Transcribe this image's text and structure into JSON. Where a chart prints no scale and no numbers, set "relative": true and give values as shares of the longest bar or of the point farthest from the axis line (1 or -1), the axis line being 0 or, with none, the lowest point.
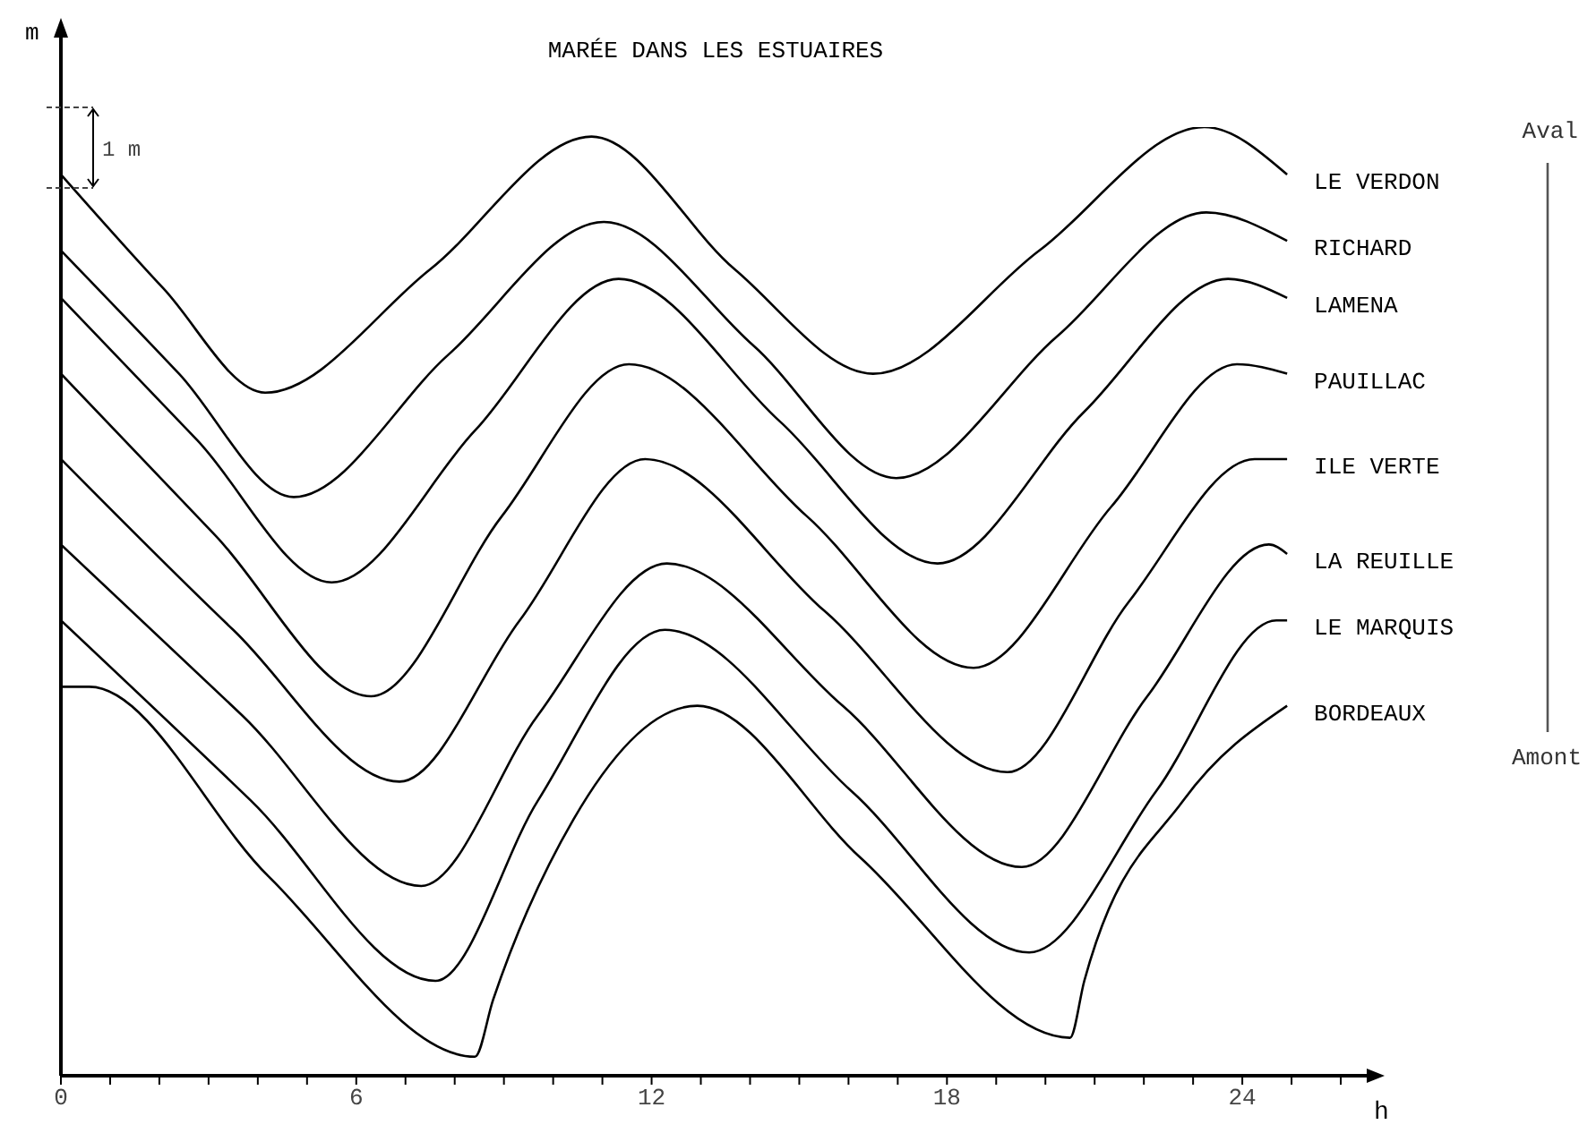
{
  "chart_data": {
    "type": "line",
    "title": "MARÉE DANS LES ESTUAIRES",
    "xlabel": "h",
    "ylabel": "m",
    "relative": true,
    "line_style": "solid",
    "xlim": [
      0,
      26.6
    ],
    "xticks": [
      0,
      {
        "value": 1,
        "label": null
      },
      {
        "value": 2,
        "label": null
      },
      {
        "value": 3,
        "label": null
      },
      {
        "value": 4,
        "label": null
      },
      {
        "value": 5,
        "label": null
      },
      6,
      {
        "value": 7,
        "label": null
      },
      {
        "value": 8,
        "label": null
      },
      {
        "value": 9,
        "label": null
      },
      {
        "value": 10,
        "label": null
      },
      {
        "value": 11,
        "label": null
      },
      12,
      {
        "value": 13,
        "label": null
      },
      {
        "value": 14,
        "label": null
      },
      {
        "value": 15,
        "label": null
      },
      {
        "value": 16,
        "label": null
      },
      {
        "value": 17,
        "label": null
      },
      18,
      {
        "value": 19,
        "label": null
      },
      {
        "value": 20,
        "label": null
      },
      {
        "value": 21,
        "label": null
      },
      {
        "value": 22,
        "label": null
      },
      {
        "value": 23,
        "label": null
      },
      24,
      {
        "value": 25,
        "label": null
      },
      {
        "value": 26,
        "label": null
      }
    ],
    "annotations": [
      "1 m",
      "Aval",
      "Amont"
    ],
    "series": [
      {
        "name": "LE VERDON",
        "color": "#000000",
        "x": [
          0,
          2.08,
          4.15,
          7.5,
          10.78,
          13.69,
          16.5,
          19.88,
          23.23,
          24.91
        ],
        "values": [
          0.95,
          0.83,
          0.72,
          0.85,
          0.99,
          0.85,
          0.74,
          0.87,
          1,
          0.95
        ]
      },
      {
        "name": "RICHARD",
        "color": "#000000",
        "x": [
          0,
          2.4,
          4.73,
          7.87,
          11.03,
          14.06,
          16.97,
          20.25,
          23.27,
          24.91
        ],
        "values": [
          0.87,
          0.74,
          0.61,
          0.76,
          0.9,
          0.77,
          0.63,
          0.78,
          0.91,
          0.88
        ]
      },
      {
        "name": "LAMENA",
        "color": "#000000",
        "x": [
          0,
          2.77,
          5.5,
          8.41,
          11.33,
          14.6,
          17.81,
          20.79,
          23.71,
          24.91
        ],
        "values": [
          0.82,
          0.67,
          0.52,
          0.68,
          0.84,
          0.69,
          0.54,
          0.7,
          0.84,
          0.82
        ]
      },
      {
        "name": "PAUILLAC",
        "color": "#000000",
        "x": [
          0,
          3.13,
          6.3,
          8.96,
          11.54,
          15.15,
          18.54,
          21.34,
          23.89,
          24.91
        ],
        "values": [
          0.74,
          0.57,
          0.4,
          0.59,
          0.75,
          0.59,
          0.43,
          0.6,
          0.75,
          0.74
        ]
      },
      {
        "name": "ILE VERTE",
        "color": "#000000",
        "x": [
          0,
          3.5,
          6.88,
          9.32,
          11.87,
          15.51,
          19.23,
          21.7,
          24.25,
          24.91
        ],
        "values": [
          0.65,
          0.47,
          0.31,
          0.48,
          0.65,
          0.49,
          0.32,
          0.5,
          0.65,
          0.65
        ]
      },
      {
        "name": "LA REUILLE",
        "color": "#000000",
        "x": [
          0,
          3.68,
          7.32,
          9.69,
          12.31,
          15.88,
          19.52,
          22.07,
          24.54,
          24.91
        ],
        "values": [
          0.56,
          0.38,
          0.2,
          0.38,
          0.54,
          0.39,
          0.22,
          0.4,
          0.56,
          0.55
        ]
      },
      {
        "name": "LE MARQUIS",
        "color": "#000000",
        "x": [
          0,
          3.86,
          7.61,
          9.69,
          12.27,
          16.06,
          19.67,
          22.25,
          24.69,
          24.91
        ],
        "values": [
          0.48,
          0.29,
          0.1,
          0.29,
          0.47,
          0.3,
          0.13,
          0.3,
          0.48,
          0.48
        ]
      },
      {
        "name": "BORDEAUX",
        "color": "#000000",
        "x": [
          0,
          0.58,
          4.22,
          8.41,
          8.78,
          10.41,
          12.93,
          16.24,
          20.5,
          20.79,
          22.8,
          24.91
        ],
        "values": [
          0.41,
          0.41,
          0.21,
          0.02,
          0.08,
          0.27,
          0.39,
          0.23,
          0.04,
          0.1,
          0.29,
          0.39
        ]
      }
    ]
  }
}
